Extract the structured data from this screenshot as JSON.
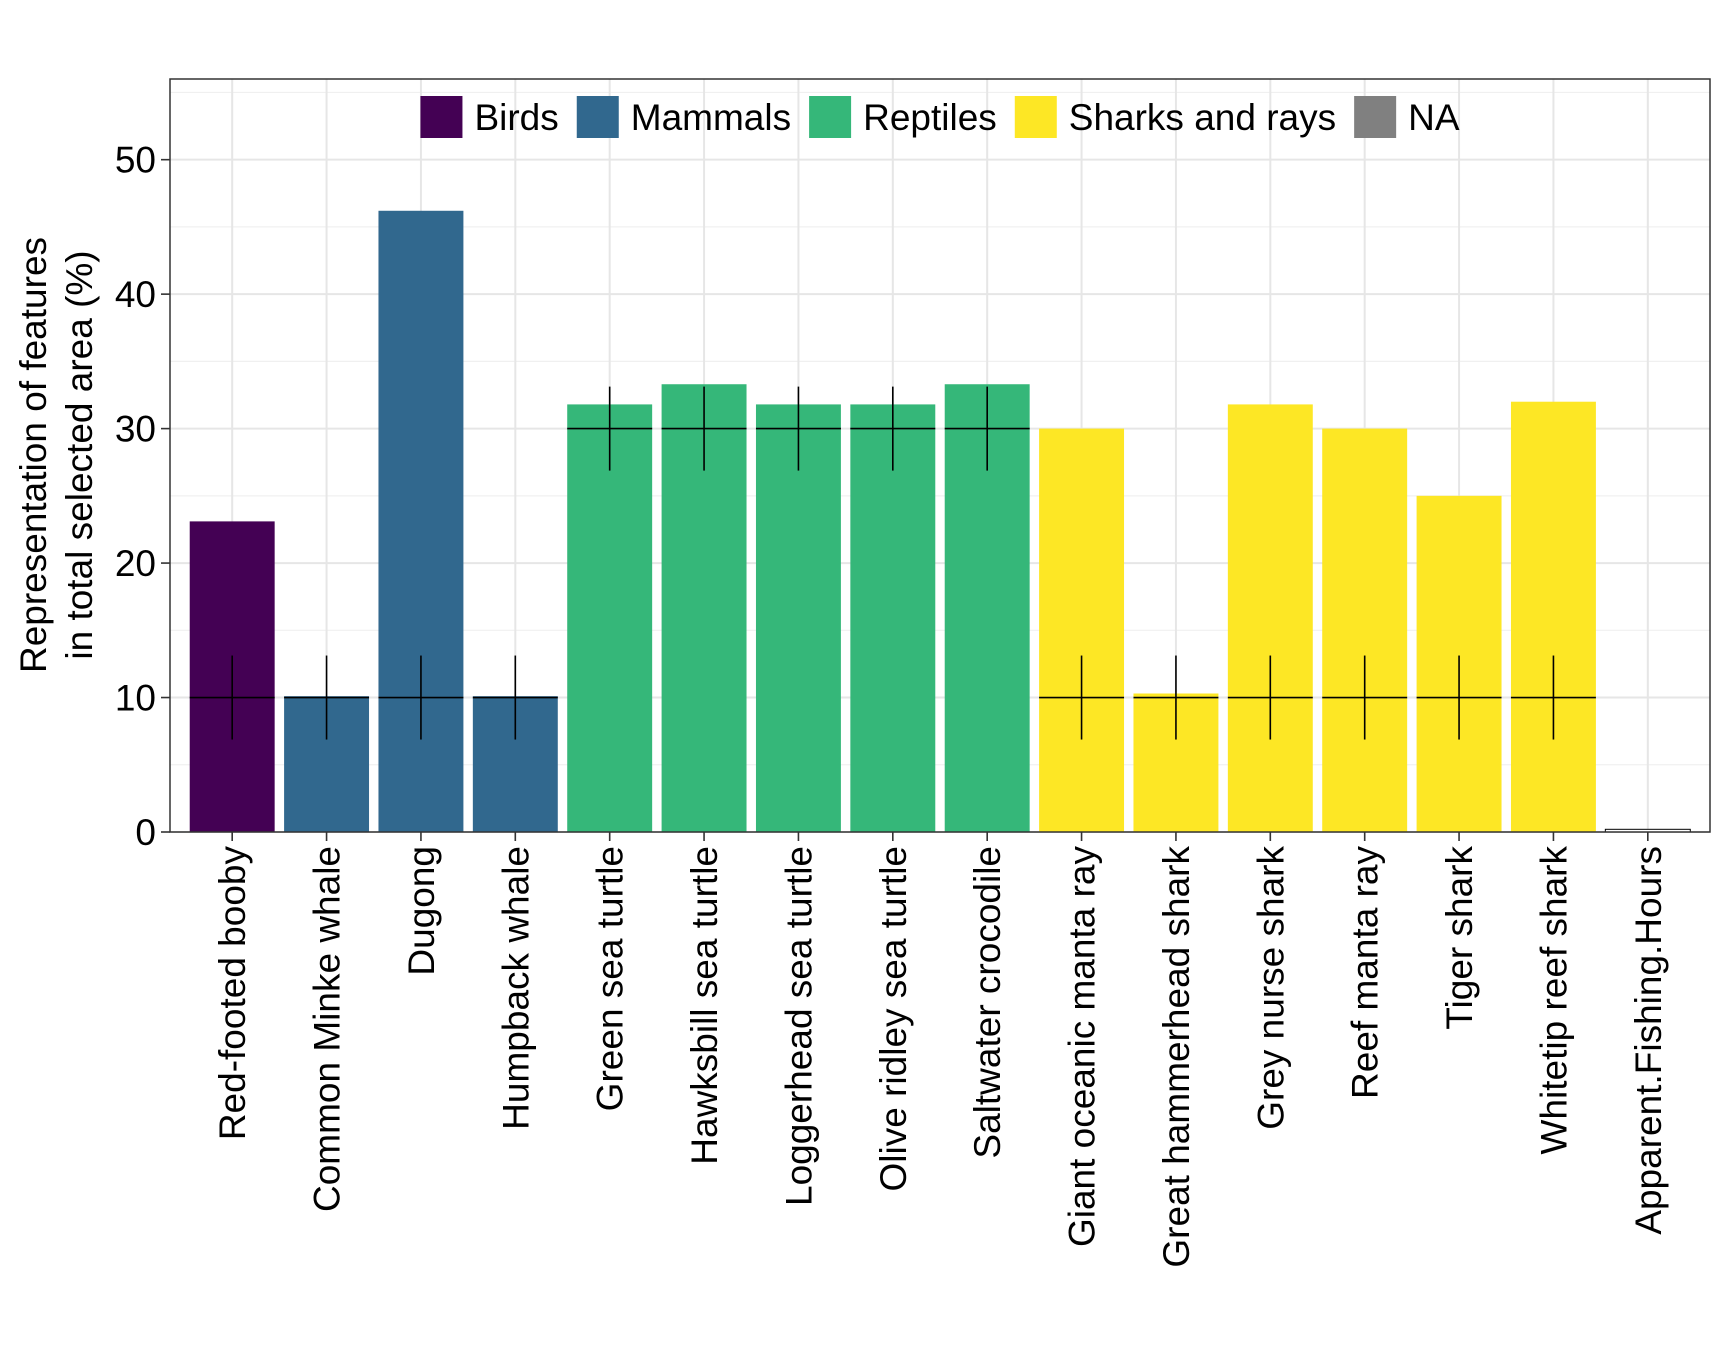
{
  "chart_data": {
    "type": "bar",
    "title": "",
    "xlabel": "",
    "ylabel_lines": [
      "Representation of features",
      "in total selected area (%)"
    ],
    "ylim": [
      0,
      56
    ],
    "yticks": [
      0,
      10,
      20,
      30,
      40,
      50
    ],
    "grid": true,
    "legend_position": "top-inside",
    "legend": [
      {
        "name": "Birds",
        "color": "#440154"
      },
      {
        "name": "Mammals",
        "color": "#31688E"
      },
      {
        "name": "Reptiles",
        "color": "#35B779"
      },
      {
        "name": "Sharks and rays",
        "color": "#FDE725"
      },
      {
        "name": "NA",
        "color": "#808080"
      }
    ],
    "categories": [
      "Red-footed booby",
      "Common Minke whale",
      "Dugong",
      "Humpback whale",
      "Green sea turtle",
      "Hawksbill sea turtle",
      "Loggerhead sea turtle",
      "Olive ridley sea turtle",
      "Saltwater crocodile",
      "Giant oceanic manta ray",
      "Great hammerhead shark",
      "Grey nurse shark",
      "Reef manta ray",
      "Tiger shark",
      "Whitetip reef shark",
      "Apparent.Fishing.Hours"
    ],
    "groups": [
      "Birds",
      "Mammals",
      "Mammals",
      "Mammals",
      "Reptiles",
      "Reptiles",
      "Reptiles",
      "Reptiles",
      "Reptiles",
      "Sharks and rays",
      "Sharks and rays",
      "Sharks and rays",
      "Sharks and rays",
      "Sharks and rays",
      "Sharks and rays",
      "NA"
    ],
    "values": [
      23.1,
      10.1,
      46.2,
      10.1,
      31.8,
      33.3,
      31.8,
      31.8,
      33.3,
      30.0,
      10.3,
      31.8,
      30.0,
      25.0,
      32.0,
      0.2
    ],
    "targets": [
      10,
      10,
      10,
      10,
      30,
      30,
      30,
      30,
      30,
      10,
      10,
      10,
      10,
      10,
      10,
      null
    ]
  }
}
